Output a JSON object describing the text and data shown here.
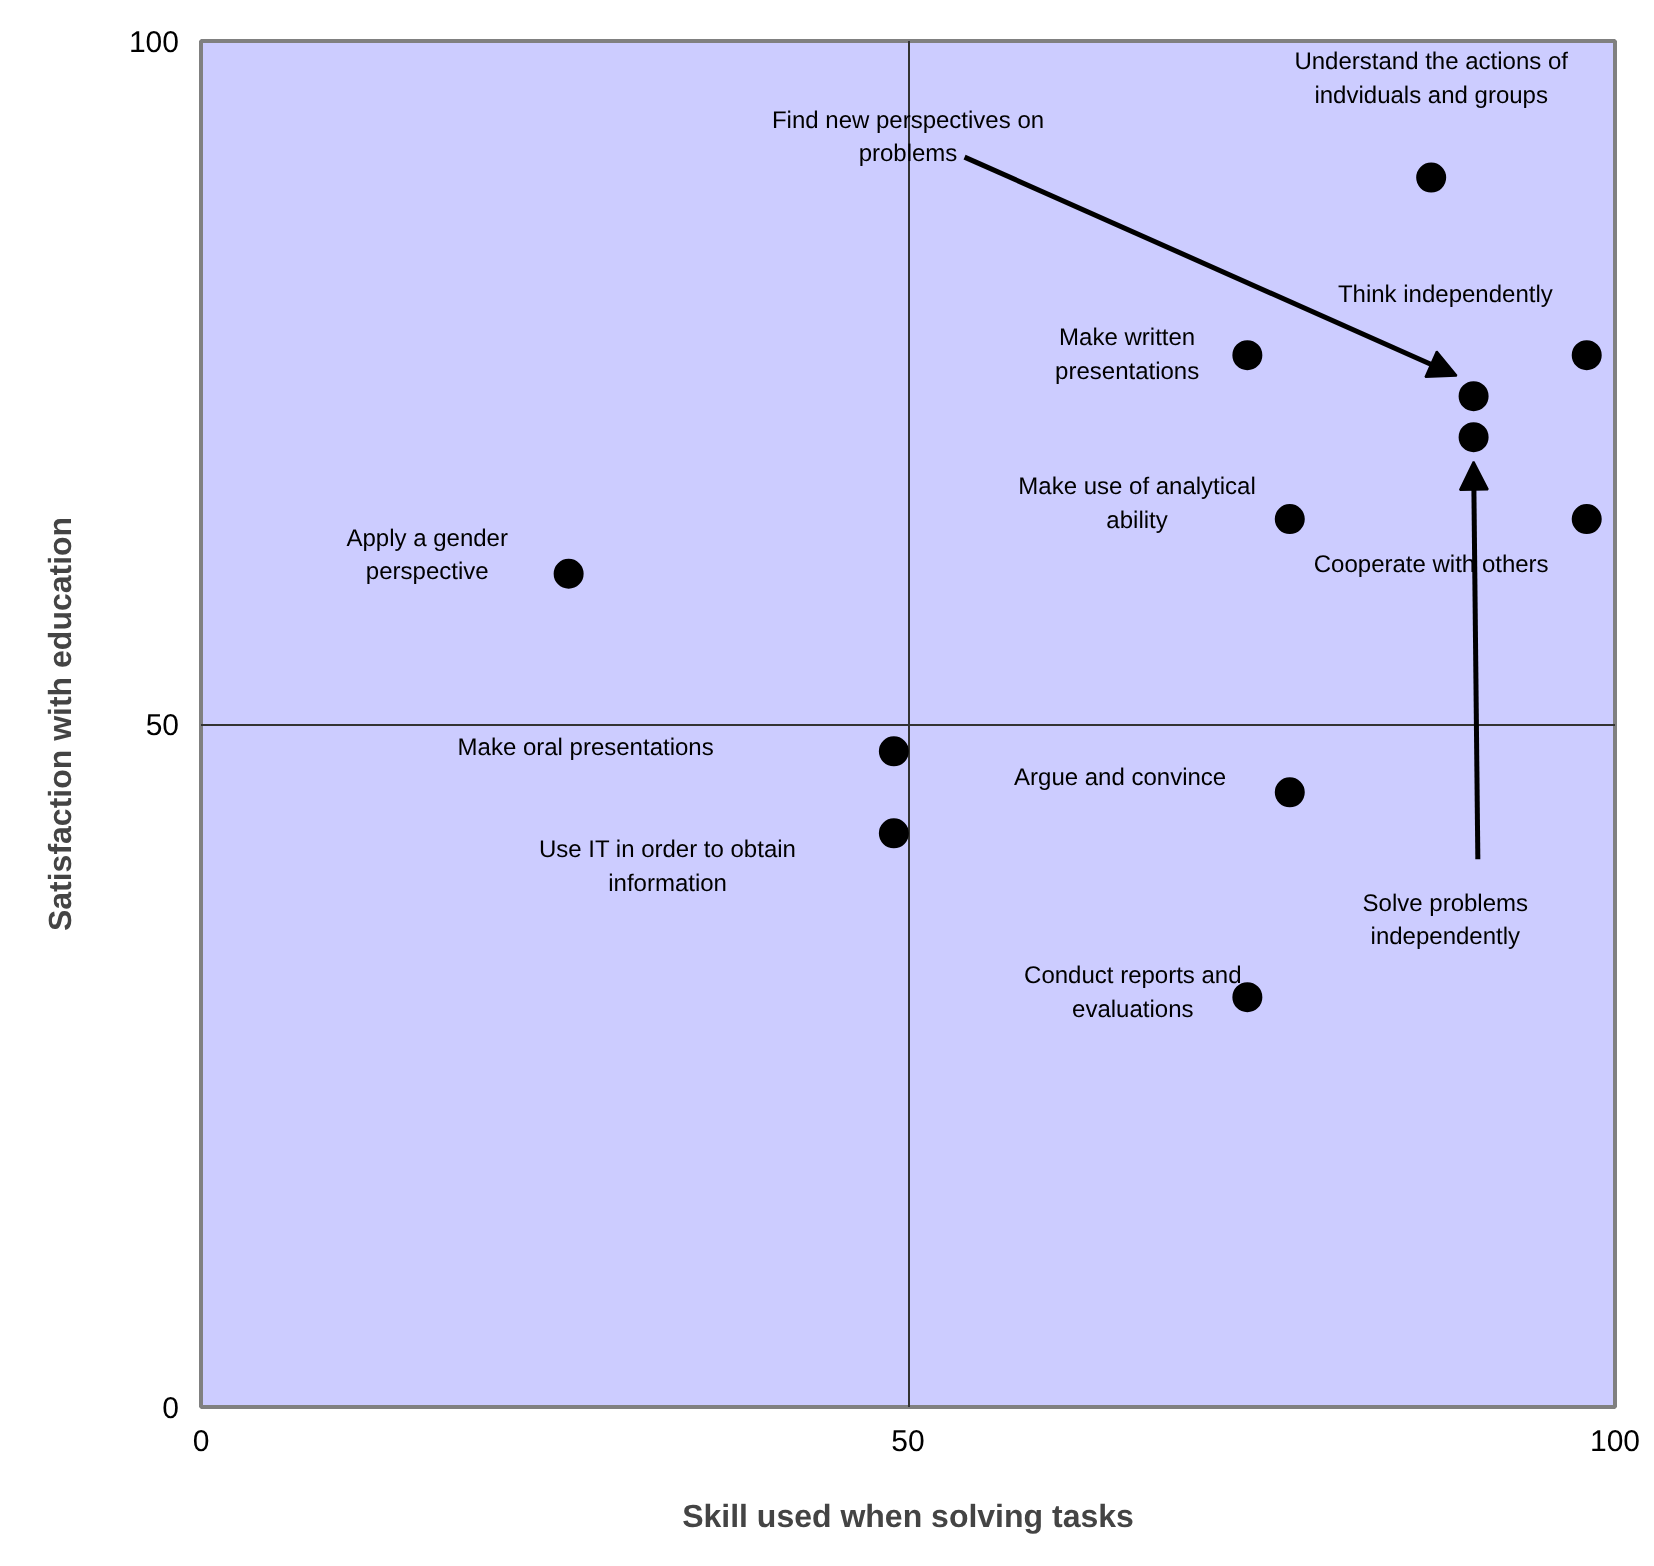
{
  "chart_data": {
    "type": "scatter",
    "xlabel": "Skill used when solving tasks",
    "ylabel": "Satisfaction with education",
    "x": [
      87,
      90,
      74,
      98,
      77,
      98,
      26,
      49,
      77,
      49,
      90,
      74
    ],
    "values": [
      90,
      74,
      77,
      77,
      65,
      65,
      61,
      48,
      45,
      42,
      71,
      30
    ],
    "color": "#000000",
    "marker": "circle",
    "xlim": [
      0,
      100
    ],
    "ylim": [
      0,
      100
    ],
    "xticks": [
      0,
      50,
      100
    ],
    "yticks": [
      0,
      50,
      100
    ],
    "grid": true,
    "annotations": [
      {
        "text": "Understand the actions of indviduals and groups",
        "x": 87,
        "y": 90
      },
      "Find new perspectives on problems",
      {
        "text": "Make written presentations",
        "x": 74,
        "y": 77
      },
      {
        "text": "Think independently",
        "x": 98,
        "y": 77
      },
      {
        "text": "Make use of analytical ability",
        "x": 77,
        "y": 65
      },
      {
        "text": "Cooperate with others",
        "x": 98,
        "y": 65
      },
      {
        "text": "Apply a gender perspective",
        "x": 26,
        "y": 61
      },
      "Make oral presentations",
      {
        "text": "Argue and convince",
        "x": 77,
        "y": 45
      },
      "Use IT in order to obtain information",
      "Solve problems independently",
      {
        "text": "Conduct reports and evaluations",
        "x": 74,
        "y": 30
      }
    ]
  }
}
